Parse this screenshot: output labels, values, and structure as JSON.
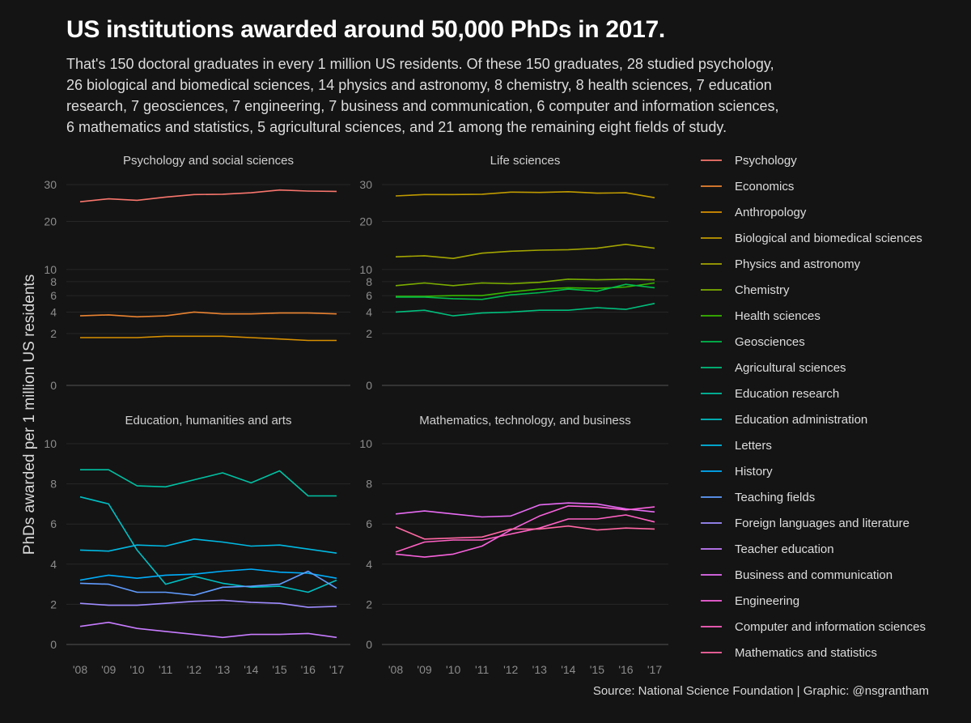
{
  "title": "US institutions awarded around 50,000 PhDs in 2017.",
  "subtitle_lines": [
    "That's 150 doctoral graduates in every 1 million US residents. Of these 150 graduates, 28 studied psychology,",
    "26 biological and biomedical sciences, 14 physics and astronomy, 8 chemistry, 8 health sciences, 7 education",
    "research, 7 geosciences, 7 engineering, 7 business and communication, 6 computer and information sciences,",
    "6 mathematics and statistics, 5 agricultural sciences, and 21 among the remaining eight fields of study."
  ],
  "caption": "Source: National Science Foundation | Graphic: @nsgrantham",
  "colors": {
    "background": "#141414",
    "grid": "#262626",
    "axis_line": "#555555",
    "tick_text": "#8c8c8c",
    "facet_text": "#cfcfcf"
  },
  "chart_data": {
    "type": "line",
    "ylabel": "PhDs awarded per 1 million US residents",
    "x": [
      "'08",
      "'09",
      "'10",
      "'11",
      "'12",
      "'13",
      "'14",
      "'15",
      "'16",
      "'17"
    ],
    "legend_position": "right",
    "grid": true,
    "panels": [
      {
        "title": "Psychology and social sciences",
        "scale": "sqrt",
        "ylim": [
          0,
          30
        ],
        "yticks": [
          0,
          2,
          4,
          6,
          8,
          10,
          20,
          30
        ],
        "series": [
          {
            "name": "Psychology",
            "color": "#F8766D",
            "values": [
              25.1,
              25.9,
              25.5,
              26.4,
              27.1,
              27.2,
              27.6,
              28.4,
              28.1,
              28.0
            ]
          },
          {
            "name": "Economics",
            "color": "#EA8331",
            "values": [
              3.6,
              3.7,
              3.5,
              3.6,
              4.0,
              3.8,
              3.8,
              3.9,
              3.9,
              3.8
            ]
          },
          {
            "name": "Anthropology",
            "color": "#D89000",
            "values": [
              1.7,
              1.7,
              1.7,
              1.8,
              1.8,
              1.8,
              1.7,
              1.6,
              1.5,
              1.5
            ]
          }
        ]
      },
      {
        "title": "Life sciences",
        "scale": "sqrt",
        "ylim": [
          0,
          30
        ],
        "yticks": [
          0,
          2,
          4,
          6,
          8,
          10,
          20,
          30
        ],
        "series": [
          {
            "name": "Biological and biomedical sciences",
            "color": "#C09B00",
            "values": [
              26.7,
              27.1,
              27.1,
              27.2,
              27.8,
              27.7,
              27.9,
              27.5,
              27.6,
              26.2
            ]
          },
          {
            "name": "Physics and astronomy",
            "color": "#A3A500",
            "values": [
              12.3,
              12.5,
              12.0,
              13.0,
              13.4,
              13.6,
              13.7,
              14.0,
              14.8,
              14.0
            ]
          },
          {
            "name": "Chemistry",
            "color": "#7CAE00",
            "values": [
              7.4,
              7.8,
              7.4,
              7.8,
              7.7,
              7.9,
              8.4,
              8.3,
              8.4,
              8.3
            ]
          },
          {
            "name": "Health sciences",
            "color": "#39B600",
            "values": [
              5.9,
              5.9,
              6.0,
              6.0,
              6.5,
              6.9,
              7.1,
              7.0,
              7.2,
              7.8
            ]
          },
          {
            "name": "Geosciences",
            "color": "#00BB4E",
            "values": [
              5.8,
              5.8,
              5.6,
              5.5,
              6.1,
              6.4,
              6.9,
              6.6,
              7.6,
              7.1
            ]
          },
          {
            "name": "Agricultural sciences",
            "color": "#00BF7D",
            "values": [
              4.0,
              4.2,
              3.6,
              3.9,
              4.0,
              4.2,
              4.2,
              4.5,
              4.3,
              5.0
            ]
          }
        ]
      },
      {
        "title": "Education, humanities and arts",
        "scale": "linear",
        "ylim": [
          0,
          10
        ],
        "yticks": [
          0,
          2,
          4,
          6,
          8,
          10
        ],
        "series": [
          {
            "name": "Education research",
            "color": "#00C1A3",
            "values": [
              8.7,
              8.7,
              7.9,
              7.85,
              8.2,
              8.55,
              8.05,
              8.65,
              7.4,
              7.4
            ]
          },
          {
            "name": "Education administration",
            "color": "#00BFC4",
            "values": [
              7.35,
              7.0,
              4.7,
              3.0,
              3.4,
              3.05,
              2.85,
              2.9,
              2.6,
              3.2
            ]
          },
          {
            "name": "Letters",
            "color": "#00B9E3",
            "values": [
              4.7,
              4.65,
              4.95,
              4.9,
              5.25,
              5.1,
              4.9,
              4.95,
              4.75,
              4.55
            ]
          },
          {
            "name": "History",
            "color": "#00ADFA",
            "values": [
              3.2,
              3.45,
              3.3,
              3.45,
              3.5,
              3.65,
              3.75,
              3.6,
              3.55,
              3.3
            ]
          },
          {
            "name": "Teaching fields",
            "color": "#619CFF",
            "values": [
              3.05,
              3.0,
              2.6,
              2.6,
              2.45,
              2.85,
              2.9,
              3.0,
              3.65,
              2.8
            ]
          },
          {
            "name": "Foreign languages and literature",
            "color": "#9F8CFF",
            "values": [
              2.05,
              1.95,
              1.95,
              2.05,
              2.15,
              2.2,
              2.1,
              2.05,
              1.85,
              1.9
            ]
          },
          {
            "name": "Teacher education",
            "color": "#C77CFF",
            "values": [
              0.9,
              1.1,
              0.8,
              0.65,
              0.5,
              0.35,
              0.5,
              0.5,
              0.55,
              0.35
            ]
          }
        ]
      },
      {
        "title": "Mathematics, technology, and business",
        "scale": "linear",
        "ylim": [
          0,
          10
        ],
        "yticks": [
          0,
          2,
          4,
          6,
          8,
          10
        ],
        "series": [
          {
            "name": "Business and communication",
            "color": "#E76BF3",
            "values": [
              6.5,
              6.65,
              6.5,
              6.35,
              6.4,
              6.95,
              7.05,
              7.0,
              6.75,
              6.6
            ]
          },
          {
            "name": "Engineering",
            "color": "#F962DD",
            "values": [
              4.5,
              4.35,
              4.5,
              4.9,
              5.7,
              6.4,
              6.9,
              6.85,
              6.7,
              6.85
            ]
          },
          {
            "name": "Computer and information sciences",
            "color": "#FF61C3",
            "values": [
              4.6,
              5.1,
              5.2,
              5.2,
              5.5,
              5.8,
              6.25,
              6.25,
              6.45,
              6.1
            ]
          },
          {
            "name": "Mathematics and statistics",
            "color": "#FF67A4",
            "values": [
              5.85,
              5.25,
              5.3,
              5.35,
              5.75,
              5.75,
              5.9,
              5.7,
              5.8,
              5.75
            ]
          }
        ]
      }
    ]
  }
}
